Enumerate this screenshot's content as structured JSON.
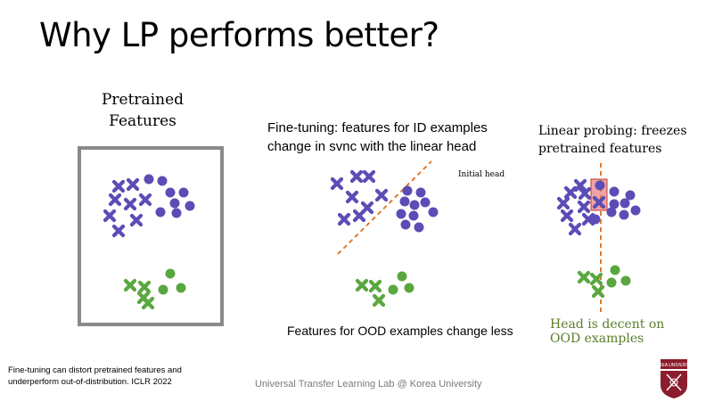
{
  "slide": {
    "title": "Why LP performs better?",
    "pretrained_label_line1": "Pretrained",
    "pretrained_label_line2": "Features",
    "finetune_caption_line1": "Fine-tuning: features for ID examples",
    "finetune_caption_line2": "change in svnc with the linear head",
    "initial_head_label": "Initial head",
    "linear_probe_caption_line1": "Linear probing: freezes",
    "linear_probe_caption_line2": "pretrained features",
    "ood_caption": "Features for OOD examples change less",
    "head_decent_line1": "Head is decent on",
    "head_decent_line2": "OOD examples",
    "citation_line1": "Fine-tuning can distort pretrained features and",
    "citation_line2": "underperform out-of-distribution. ICLR 2022",
    "footer": "Universal Transfer Learning Lab @ Korea University",
    "logo_text": "KOREA UNIVERSITY"
  },
  "colors": {
    "purple": "#5b4db5",
    "green": "#5aa73f",
    "orange_dashed": "#e07a2e",
    "highlight_fill": "#e8868a",
    "highlight_stroke": "#c0392b",
    "box_gray": "#8a8a8a",
    "logo_crimson": "#8b1d2c",
    "green_text": "#5a7d2a"
  },
  "icons": [
    "purple-cross-marker",
    "purple-dot-marker",
    "green-cross-marker",
    "green-dot-marker",
    "korea-university-crest-icon"
  ]
}
